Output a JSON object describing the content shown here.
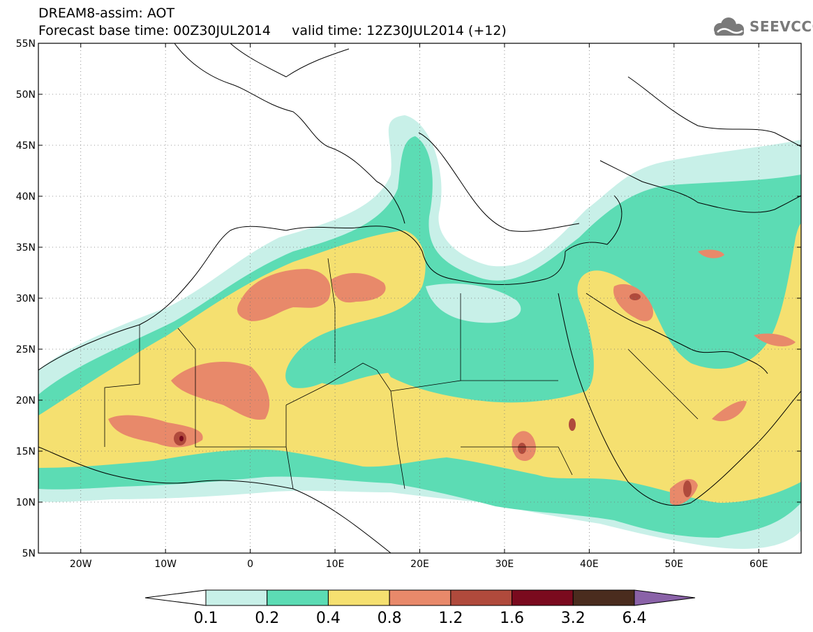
{
  "header": {
    "title": "DREAM8-assim: AOT",
    "subtitle": "Forecast base time: 00Z30JUL2014     valid time: 12Z30JUL2014 (+12)"
  },
  "logo": {
    "text": "SEEVCCC",
    "icon": "cloud-icon"
  },
  "map": {
    "lon_range": [
      -25,
      65
    ],
    "lat_range": [
      5,
      55
    ],
    "grid": "dotted",
    "lat_ticks": [
      {
        "value": 55,
        "label": "55N"
      },
      {
        "value": 50,
        "label": "50N"
      },
      {
        "value": 45,
        "label": "45N"
      },
      {
        "value": 40,
        "label": "40N"
      },
      {
        "value": 35,
        "label": "35N"
      },
      {
        "value": 30,
        "label": "30N"
      },
      {
        "value": 25,
        "label": "25N"
      },
      {
        "value": 20,
        "label": "20N"
      },
      {
        "value": 15,
        "label": "15N"
      },
      {
        "value": 10,
        "label": "10N"
      },
      {
        "value": 5,
        "label": "5N"
      }
    ],
    "lon_ticks": [
      {
        "value": -20,
        "label": "20W"
      },
      {
        "value": -10,
        "label": "10W"
      },
      {
        "value": 0,
        "label": "0"
      },
      {
        "value": 10,
        "label": "10E"
      },
      {
        "value": 20,
        "label": "20E"
      },
      {
        "value": 30,
        "label": "30E"
      },
      {
        "value": 40,
        "label": "40E"
      },
      {
        "value": 50,
        "label": "50E"
      },
      {
        "value": 60,
        "label": "60E"
      }
    ]
  },
  "colorbar": {
    "bins": [
      {
        "color": "#ffffff"
      },
      {
        "color": "#c8f0e8"
      },
      {
        "color": "#5cdcb4"
      },
      {
        "color": "#f5e070"
      },
      {
        "color": "#e8896a"
      },
      {
        "color": "#b04a3c"
      },
      {
        "color": "#7a0a1e"
      },
      {
        "color": "#4a2c1e"
      },
      {
        "color": "#8a62a8"
      }
    ],
    "labels": [
      "0.1",
      "0.2",
      "0.4",
      "0.8",
      "1.2",
      "1.6",
      "3.2",
      "6.4"
    ]
  }
}
